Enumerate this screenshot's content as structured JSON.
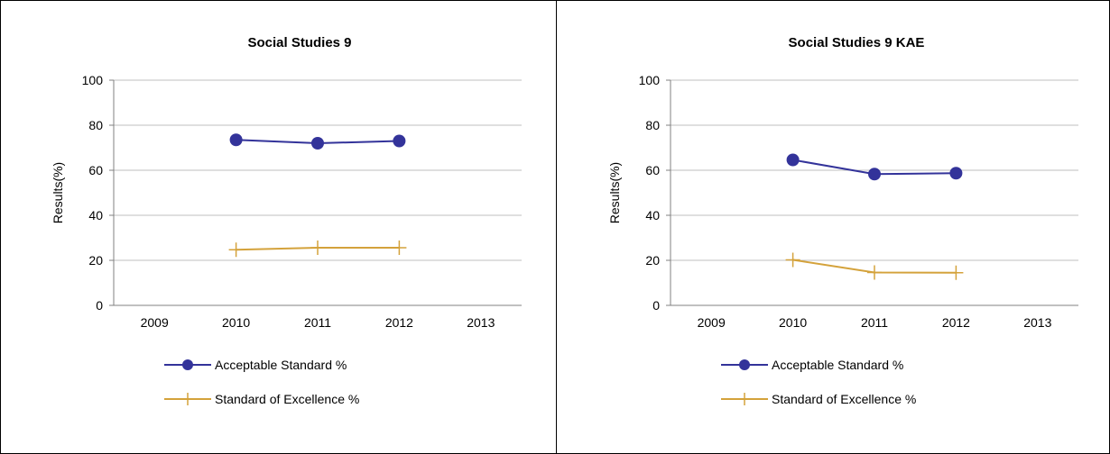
{
  "chart_data": [
    {
      "type": "line",
      "title": "Social Studies 9",
      "ylabel": "Results(%)",
      "xlabel": "",
      "categories": [
        "2009",
        "2010",
        "2011",
        "2012",
        "2013"
      ],
      "ylim": [
        0,
        100
      ],
      "yticks": [
        0,
        20,
        40,
        60,
        80,
        100
      ],
      "grid": true,
      "legend_position": "bottom",
      "series": [
        {
          "name": "Acceptable Standard %",
          "color": "#33339a",
          "marker": "circle",
          "values": [
            null,
            73.5,
            72.0,
            73.0,
            null
          ]
        },
        {
          "name": "Standard of Excellence %",
          "color": "#d4a23b",
          "marker": "plus",
          "values": [
            null,
            24.7,
            25.6,
            25.6,
            null
          ]
        }
      ]
    },
    {
      "type": "line",
      "title": "Social Studies 9 KAE",
      "ylabel": "Results(%)",
      "xlabel": "",
      "categories": [
        "2009",
        "2010",
        "2011",
        "2012",
        "2013"
      ],
      "ylim": [
        0,
        100
      ],
      "yticks": [
        0,
        20,
        40,
        60,
        80,
        100
      ],
      "grid": true,
      "legend_position": "bottom",
      "series": [
        {
          "name": "Acceptable Standard %",
          "color": "#33339a",
          "marker": "circle",
          "values": [
            null,
            64.6,
            58.3,
            58.7,
            null
          ]
        },
        {
          "name": "Standard of Excellence %",
          "color": "#d4a23b",
          "marker": "plus",
          "values": [
            null,
            20.2,
            14.6,
            14.5,
            null
          ]
        }
      ]
    }
  ]
}
